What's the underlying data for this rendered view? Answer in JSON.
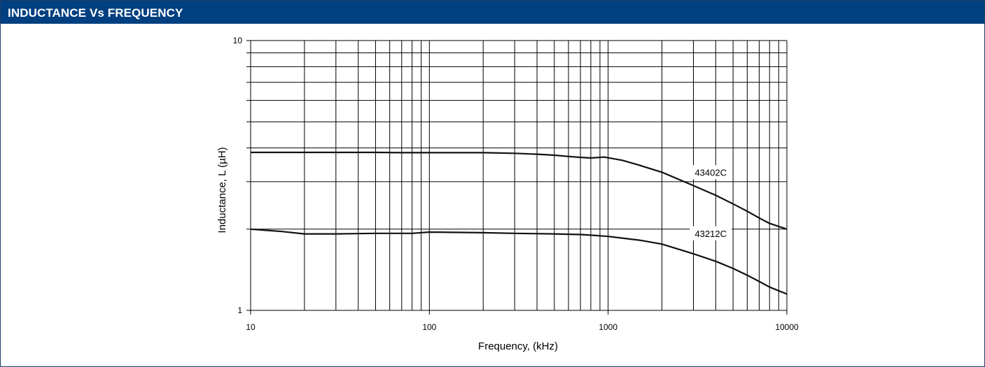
{
  "header": {
    "title": "INDUCTANCE Vs FREQUENCY"
  },
  "colors": {
    "header_bg": "#004080",
    "header_text": "#ffffff",
    "grid": "#000000",
    "line": "#111111"
  },
  "chart_data": {
    "type": "line",
    "title": "",
    "xlabel": "Frequency, (kHz)",
    "ylabel": "Inductance, L (µH)",
    "xscale": "log",
    "yscale": "log",
    "xlim": [
      10,
      10000
    ],
    "ylim": [
      1,
      10
    ],
    "grid": true,
    "x_ticks": [
      "10",
      "100",
      "1000",
      "10000"
    ],
    "y_ticks": [
      "1",
      "10"
    ],
    "series": [
      {
        "name": "43402C",
        "x": [
          10,
          20,
          30,
          50,
          70,
          100,
          200,
          300,
          400,
          500,
          600,
          700,
          800,
          950,
          1200,
          1500,
          2000,
          3000,
          4000,
          5000,
          6000,
          7000,
          8000,
          10000
        ],
        "y": [
          3.85,
          3.85,
          3.85,
          3.85,
          3.84,
          3.84,
          3.84,
          3.82,
          3.79,
          3.76,
          3.72,
          3.69,
          3.67,
          3.7,
          3.6,
          3.45,
          3.25,
          2.9,
          2.67,
          2.48,
          2.33,
          2.2,
          2.1,
          2.0
        ]
      },
      {
        "name": "43212C",
        "x": [
          10,
          15,
          20,
          30,
          50,
          70,
          80,
          100,
          200,
          300,
          500,
          700,
          800,
          1000,
          1500,
          2000,
          3000,
          4000,
          5000,
          6000,
          7000,
          8000,
          10000
        ],
        "y": [
          2.0,
          1.96,
          1.92,
          1.92,
          1.93,
          1.93,
          1.93,
          1.95,
          1.94,
          1.93,
          1.92,
          1.91,
          1.9,
          1.88,
          1.82,
          1.76,
          1.62,
          1.52,
          1.43,
          1.35,
          1.28,
          1.22,
          1.15
        ]
      }
    ]
  }
}
